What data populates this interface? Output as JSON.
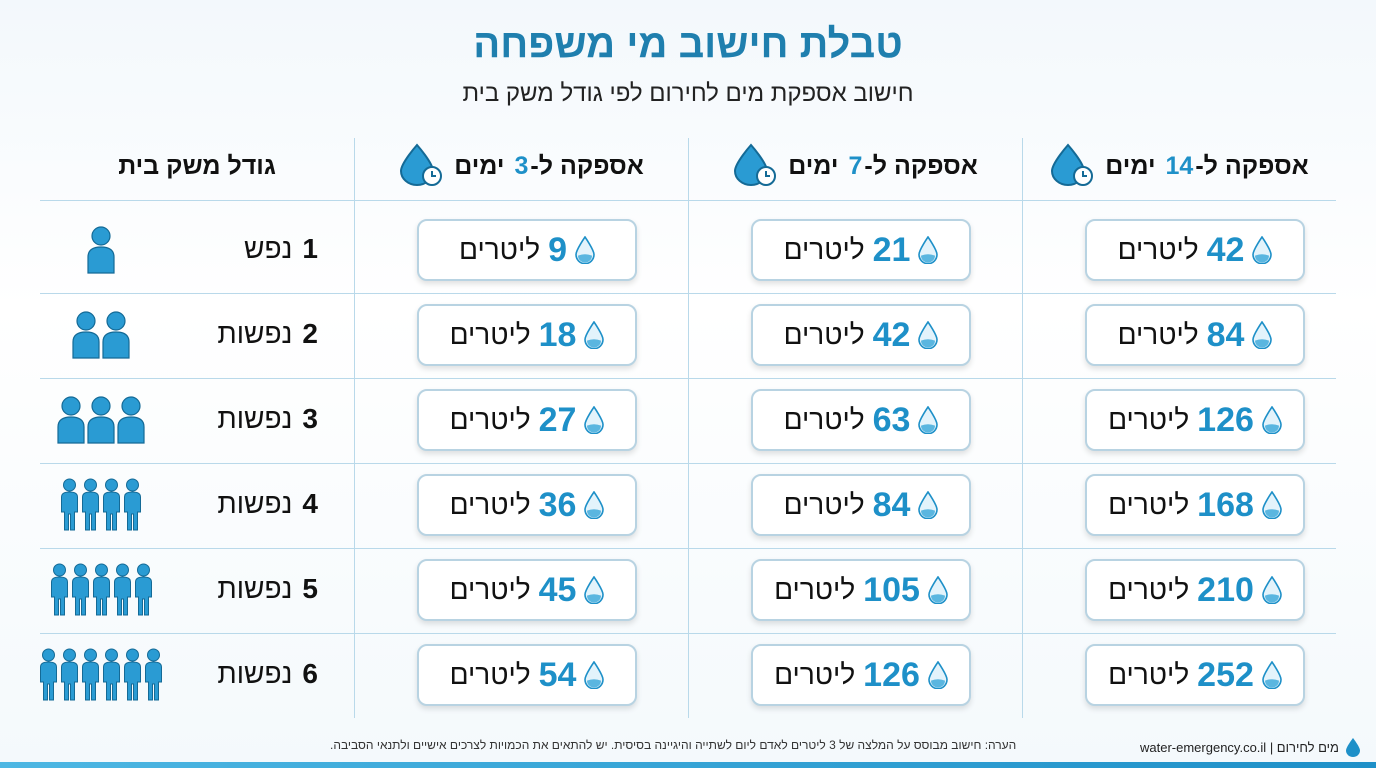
{
  "header": {
    "title": "טבלת חישוב מי משפחה",
    "subtitle": "חישוב אספקת מים לחירום לפי גודל משק בית"
  },
  "table": {
    "columns": [
      {
        "text": "גודל משק בית"
      },
      {
        "prefix": "אספקה ל-",
        "days": 3,
        "suffix": "ימים"
      },
      {
        "prefix": "אספקה ל-",
        "days": 7,
        "suffix": "ימים"
      },
      {
        "prefix": "אספקה ל-",
        "days": 14,
        "suffix": "ימים"
      }
    ],
    "unit": "ליטרים",
    "rows": [
      {
        "size": 1,
        "label": "נפש",
        "values": [
          9,
          21,
          42
        ]
      },
      {
        "size": 2,
        "label": "נפשות",
        "values": [
          18,
          42,
          84
        ]
      },
      {
        "size": 3,
        "label": "נפשות",
        "values": [
          27,
          63,
          126
        ]
      },
      {
        "size": 4,
        "label": "נפשות",
        "values": [
          36,
          84,
          168
        ]
      },
      {
        "size": 5,
        "label": "נפשות",
        "values": [
          45,
          105,
          210
        ]
      },
      {
        "size": 6,
        "label": "נפשות",
        "values": [
          54,
          126,
          252
        ]
      }
    ]
  },
  "footer": {
    "note": "הערה: חישוב מבוסס על המלצה של 3 ליטרים לאדם ליום לשתייה והיגיינה בסיסית. יש להתאים את הכמויות לצרכים אישיים ולתנאי הסביבה.",
    "brand": "מים לחירום | water-emergency.co.il"
  }
}
